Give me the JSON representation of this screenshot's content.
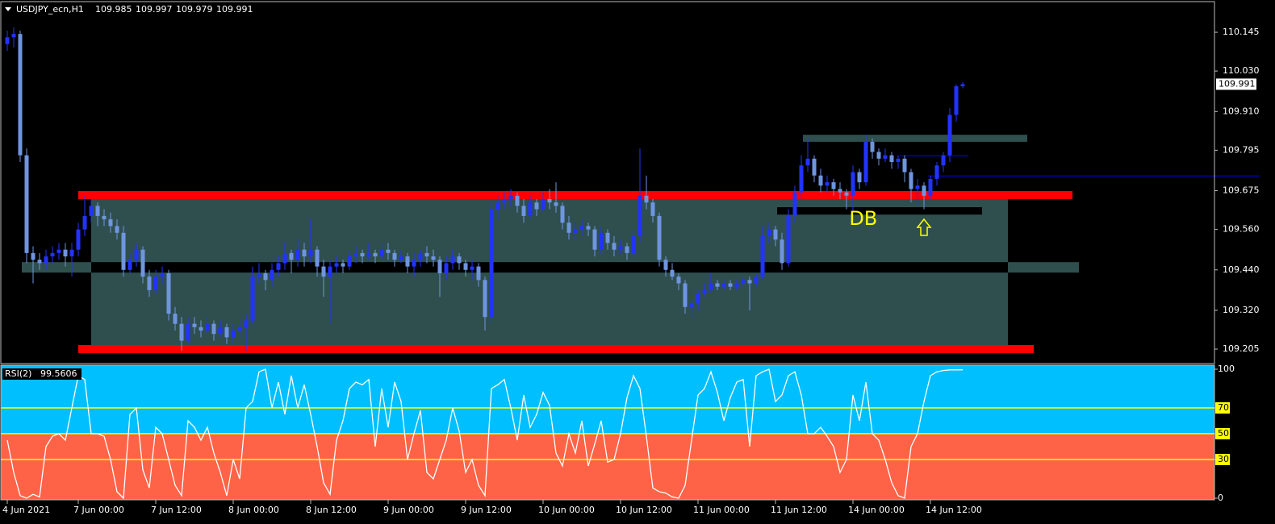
{
  "chart_data": {
    "type": "candlestick",
    "symbol": "USDJPY_ecn,H1",
    "colors": {
      "up": "#2233ff",
      "down": "#6f95e0",
      "label_bg": "#ffffff",
      "annotation": "#ffff00"
    },
    "ylim": [
      109.162,
      110.236
    ],
    "yticks": [
      110.145,
      {
        "value": 110.03,
        "label": "110.030"
      },
      {
        "value": 109.91,
        "label": "109.910"
      },
      109.795,
      109.675,
      {
        "value": 109.56,
        "label": "109.560"
      },
      {
        "value": 109.44,
        "label": "109.440"
      },
      {
        "value": 109.32,
        "label": "109.320"
      },
      109.205
    ],
    "xticks": [
      {
        "value": 0,
        "label": "4 Jun 2021"
      },
      {
        "value": 11,
        "label": "7 Jun 00:00"
      },
      {
        "value": 23,
        "label": "7 Jun 12:00"
      },
      {
        "value": 35,
        "label": "8 Jun 00:00"
      },
      {
        "value": 47,
        "label": "8 Jun 12:00"
      },
      {
        "value": 59,
        "label": "9 Jun 00:00"
      },
      {
        "value": 71,
        "label": "9 Jun 12:00"
      },
      {
        "value": 83,
        "label": "10 Jun 00:00"
      },
      {
        "value": 95,
        "label": "10 Jun 12:00"
      },
      {
        "value": 107,
        "label": "11 Jun 00:00"
      },
      {
        "value": 119,
        "label": "11 Jun 12:00"
      },
      {
        "value": 131,
        "label": "14 Jun 00:00"
      },
      {
        "value": 143,
        "label": "14 Jun 12:00"
      }
    ],
    "zones": [
      {
        "from": 2.25,
        "to": 166,
        "lo": 109.432,
        "hi": 109.463,
        "color": "#2f4f4f"
      },
      {
        "from": 13,
        "to": 155,
        "lo": 109.205,
        "hi": 109.662,
        "color": "#2f4f4f"
      },
      {
        "from": 13,
        "to": 155,
        "lo": 109.432,
        "hi": 109.463,
        "color": "#000000"
      },
      {
        "from": 123.25,
        "to": 158,
        "lo": 109.82,
        "hi": 109.841,
        "color": "#2f4f4f"
      },
      {
        "from": 119.25,
        "to": 151,
        "lo": 109.604,
        "hi": 109.626,
        "color": "#000000"
      },
      {
        "from": 11,
        "to": 165,
        "lo": 109.65,
        "hi": 109.674,
        "color": "#ff0000"
      },
      {
        "from": 11,
        "to": 159,
        "lo": 109.193,
        "hi": 109.217,
        "color": "#ff0000"
      },
      {
        "from": 142.6,
        "to": 194,
        "lo": 109.718,
        "hi": 109.72,
        "color": "#0000ff"
      },
      {
        "from": 138.25,
        "to": 148.9,
        "lo": 109.778,
        "hi": 109.78,
        "color": "#0000ff"
      }
    ],
    "annotation": {
      "text": "DB",
      "x": 132.6,
      "y": 109.59
    },
    "ohlc": [
      [
        110.11,
        110.15,
        110.09,
        110.13
      ],
      [
        110.13,
        110.16,
        110.1,
        110.14
      ],
      [
        110.14,
        110.15,
        109.76,
        109.78
      ],
      [
        109.78,
        109.8,
        109.46,
        109.49
      ],
      [
        109.49,
        109.51,
        109.4,
        109.47
      ],
      [
        109.47,
        109.49,
        109.44,
        109.46
      ],
      [
        109.46,
        109.5,
        109.44,
        109.48
      ],
      [
        109.48,
        109.51,
        109.46,
        109.49
      ],
      [
        109.49,
        109.52,
        109.47,
        109.5
      ],
      [
        109.5,
        109.52,
        109.45,
        109.48
      ],
      [
        109.48,
        109.52,
        109.42,
        109.5
      ],
      [
        109.5,
        109.58,
        109.48,
        109.56
      ],
      [
        109.56,
        109.66,
        109.54,
        109.6
      ],
      [
        109.6,
        109.65,
        109.58,
        109.63
      ],
      [
        109.63,
        109.64,
        109.57,
        109.6
      ],
      [
        109.6,
        109.62,
        109.57,
        109.59
      ],
      [
        109.59,
        109.61,
        109.55,
        109.57
      ],
      [
        109.57,
        109.59,
        109.53,
        109.55
      ],
      [
        109.55,
        109.57,
        109.42,
        109.44
      ],
      [
        109.44,
        109.49,
        109.43,
        109.47
      ],
      [
        109.47,
        109.52,
        109.45,
        109.5
      ],
      [
        109.5,
        109.51,
        109.4,
        109.42
      ],
      [
        109.42,
        109.44,
        109.36,
        109.38
      ],
      [
        109.38,
        109.44,
        109.37,
        109.42
      ],
      [
        109.42,
        109.45,
        109.4,
        109.43
      ],
      [
        109.43,
        109.44,
        109.29,
        109.31
      ],
      [
        109.31,
        109.33,
        109.26,
        109.28
      ],
      [
        109.28,
        109.3,
        109.2,
        109.23
      ],
      [
        109.23,
        109.3,
        109.22,
        109.28
      ],
      [
        109.28,
        109.3,
        109.25,
        109.27
      ],
      [
        109.27,
        109.29,
        109.24,
        109.26
      ],
      [
        109.26,
        109.3,
        109.25,
        109.28
      ],
      [
        109.28,
        109.29,
        109.23,
        109.25
      ],
      [
        109.25,
        109.29,
        109.24,
        109.27
      ],
      [
        109.27,
        109.28,
        109.22,
        109.24
      ],
      [
        109.24,
        109.28,
        109.22,
        109.26
      ],
      [
        109.26,
        109.29,
        109.24,
        109.27
      ],
      [
        109.27,
        109.31,
        109.2,
        109.29
      ],
      [
        109.29,
        109.45,
        109.28,
        109.42
      ],
      [
        109.42,
        109.46,
        109.4,
        109.43
      ],
      [
        109.43,
        109.44,
        109.38,
        109.41
      ],
      [
        109.41,
        109.46,
        109.39,
        109.44
      ],
      [
        109.44,
        109.48,
        109.42,
        109.46
      ],
      [
        109.46,
        109.52,
        109.44,
        109.49
      ],
      [
        109.49,
        109.5,
        109.43,
        109.47
      ],
      [
        109.47,
        109.53,
        109.45,
        109.5
      ],
      [
        109.5,
        109.52,
        109.45,
        109.48
      ],
      [
        109.48,
        109.59,
        109.46,
        109.5
      ],
      [
        109.5,
        109.51,
        109.42,
        109.45
      ],
      [
        109.45,
        109.47,
        109.36,
        109.42
      ],
      [
        109.42,
        109.47,
        109.28,
        109.45
      ],
      [
        109.45,
        109.48,
        109.43,
        109.46
      ],
      [
        109.46,
        109.47,
        109.43,
        109.45
      ],
      [
        109.45,
        109.5,
        109.44,
        109.48
      ],
      [
        109.48,
        109.51,
        109.46,
        109.49
      ],
      [
        109.49,
        109.5,
        109.46,
        109.48
      ],
      [
        109.48,
        109.52,
        109.47,
        109.49
      ],
      [
        109.49,
        109.5,
        109.46,
        109.48
      ],
      [
        109.48,
        109.52,
        109.47,
        109.5
      ],
      [
        109.5,
        109.52,
        109.47,
        109.49
      ],
      [
        109.49,
        109.5,
        109.45,
        109.47
      ],
      [
        109.47,
        109.5,
        109.46,
        109.48
      ],
      [
        109.48,
        109.49,
        109.43,
        109.45
      ],
      [
        109.45,
        109.49,
        109.42,
        109.47
      ],
      [
        109.47,
        109.5,
        109.45,
        109.49
      ],
      [
        109.49,
        109.51,
        109.46,
        109.48
      ],
      [
        109.48,
        109.5,
        109.45,
        109.47
      ],
      [
        109.47,
        109.48,
        109.36,
        109.43
      ],
      [
        109.43,
        109.48,
        109.41,
        109.46
      ],
      [
        109.46,
        109.5,
        109.44,
        109.48
      ],
      [
        109.48,
        109.49,
        109.44,
        109.46
      ],
      [
        109.46,
        109.47,
        109.42,
        109.44
      ],
      [
        109.44,
        109.47,
        109.41,
        109.45
      ],
      [
        109.45,
        109.46,
        109.39,
        109.41
      ],
      [
        109.41,
        109.42,
        109.26,
        109.3
      ],
      [
        109.3,
        109.64,
        109.28,
        109.62
      ],
      [
        109.62,
        109.66,
        109.59,
        109.64
      ],
      [
        109.64,
        109.67,
        109.62,
        109.65
      ],
      [
        109.65,
        109.68,
        109.63,
        109.66
      ],
      [
        109.66,
        109.67,
        109.61,
        109.63
      ],
      [
        109.63,
        109.65,
        109.58,
        109.6
      ],
      [
        109.6,
        109.66,
        109.59,
        109.64
      ],
      [
        109.64,
        109.65,
        109.6,
        109.62
      ],
      [
        109.62,
        109.67,
        109.61,
        109.65
      ],
      [
        109.65,
        109.68,
        109.62,
        109.64
      ],
      [
        109.64,
        109.7,
        109.61,
        109.63
      ],
      [
        109.63,
        109.64,
        109.56,
        109.58
      ],
      [
        109.58,
        109.6,
        109.53,
        109.55
      ],
      [
        109.55,
        109.58,
        109.53,
        109.56
      ],
      [
        109.56,
        109.59,
        109.54,
        109.57
      ],
      [
        109.57,
        109.58,
        109.54,
        109.56
      ],
      [
        109.56,
        109.57,
        109.48,
        109.5
      ],
      [
        109.5,
        109.57,
        109.49,
        109.55
      ],
      [
        109.55,
        109.56,
        109.5,
        109.52
      ],
      [
        109.52,
        109.54,
        109.48,
        109.5
      ],
      [
        109.5,
        109.53,
        109.49,
        109.51
      ],
      [
        109.51,
        109.52,
        109.47,
        109.49
      ],
      [
        109.49,
        109.56,
        109.48,
        109.54
      ],
      [
        109.54,
        109.8,
        109.52,
        109.66
      ],
      [
        109.66,
        109.72,
        109.62,
        109.64
      ],
      [
        109.64,
        109.65,
        109.58,
        109.6
      ],
      [
        109.6,
        109.61,
        109.45,
        109.47
      ],
      [
        109.47,
        109.48,
        109.42,
        109.44
      ],
      [
        109.44,
        109.46,
        109.41,
        109.42
      ],
      [
        109.42,
        109.43,
        109.38,
        109.4
      ],
      [
        109.4,
        109.41,
        109.31,
        109.33
      ],
      [
        109.33,
        109.35,
        109.3,
        109.34
      ],
      [
        109.34,
        109.38,
        109.32,
        109.37
      ],
      [
        109.37,
        109.4,
        109.36,
        109.38
      ],
      [
        109.38,
        109.43,
        109.37,
        109.4
      ],
      [
        109.4,
        109.41,
        109.38,
        109.39
      ],
      [
        109.39,
        109.41,
        109.38,
        109.4
      ],
      [
        109.4,
        109.41,
        109.38,
        109.39
      ],
      [
        109.39,
        109.41,
        109.38,
        109.4
      ],
      [
        109.4,
        109.42,
        109.39,
        109.41
      ],
      [
        109.41,
        109.42,
        109.32,
        109.4
      ],
      [
        109.4,
        109.43,
        109.39,
        109.42
      ],
      [
        109.42,
        109.57,
        109.41,
        109.54
      ],
      [
        109.54,
        109.58,
        109.52,
        109.56
      ],
      [
        109.56,
        109.57,
        109.51,
        109.53
      ],
      [
        109.53,
        109.55,
        109.44,
        109.46
      ],
      [
        109.46,
        109.62,
        109.45,
        109.6
      ],
      [
        109.6,
        109.69,
        109.58,
        109.67
      ],
      [
        109.67,
        109.78,
        109.65,
        109.75
      ],
      [
        109.75,
        109.83,
        109.73,
        109.77
      ],
      [
        109.77,
        109.78,
        109.7,
        109.72
      ],
      [
        109.72,
        109.74,
        109.67,
        109.69
      ],
      [
        109.69,
        109.72,
        109.67,
        109.7
      ],
      [
        109.7,
        109.71,
        109.66,
        109.68
      ],
      [
        109.68,
        109.7,
        109.65,
        109.67
      ],
      [
        109.67,
        109.68,
        109.62,
        109.66
      ],
      [
        109.66,
        109.75,
        109.61,
        109.73
      ],
      [
        109.73,
        109.74,
        109.68,
        109.7
      ],
      [
        109.7,
        109.84,
        109.69,
        109.82
      ],
      [
        109.82,
        109.83,
        109.77,
        109.79
      ],
      [
        109.79,
        109.8,
        109.75,
        109.77
      ],
      [
        109.77,
        109.8,
        109.76,
        109.78
      ],
      [
        109.78,
        109.79,
        109.74,
        109.76
      ],
      [
        109.76,
        109.78,
        109.74,
        109.77
      ],
      [
        109.77,
        109.78,
        109.7,
        109.73
      ],
      [
        109.73,
        109.74,
        109.64,
        109.68
      ],
      [
        109.68,
        109.71,
        109.63,
        109.69
      ],
      [
        109.69,
        109.7,
        109.62,
        109.66
      ],
      [
        109.66,
        109.72,
        109.65,
        109.71
      ],
      [
        109.71,
        109.76,
        109.69,
        109.75
      ],
      [
        109.75,
        109.79,
        109.73,
        109.78
      ],
      [
        109.78,
        109.92,
        109.76,
        109.9
      ],
      [
        109.9,
        109.99,
        109.88,
        109.985
      ],
      [
        109.985,
        109.997,
        109.979,
        109.991
      ]
    ],
    "indicator": {
      "label": "RSI(2)",
      "color": "#ffffff",
      "upper_color": "#00bfff",
      "lower_color": "#ff6347",
      "level_color": "#ffff00",
      "ylim": [
        0,
        100
      ],
      "yticks": [
        100,
        70,
        50,
        30,
        0
      ],
      "levels": [
        70,
        50,
        30
      ],
      "values": [
        45,
        20,
        2,
        0,
        3,
        1,
        40,
        48,
        50,
        45,
        70,
        95,
        92,
        50,
        50,
        48,
        30,
        5,
        0,
        65,
        70,
        22,
        8,
        55,
        50,
        30,
        10,
        2,
        60,
        55,
        45,
        55,
        35,
        20,
        2,
        30,
        15,
        70,
        75,
        98,
        100,
        70,
        90,
        65,
        95,
        70,
        88,
        65,
        40,
        12,
        3,
        45,
        60,
        85,
        90,
        88,
        92,
        40,
        85,
        55,
        90,
        75,
        30,
        50,
        68,
        20,
        15,
        30,
        45,
        70,
        52,
        20,
        30,
        10,
        2,
        85,
        88,
        92,
        70,
        45,
        80,
        55,
        65,
        82,
        72,
        35,
        25,
        50,
        35,
        60,
        25,
        42,
        60,
        28,
        30,
        50,
        78,
        95,
        85,
        48,
        8,
        5,
        4,
        1,
        0,
        10,
        45,
        80,
        85,
        98,
        82,
        60,
        78,
        90,
        92,
        40,
        95,
        98,
        100,
        75,
        80,
        95,
        98,
        80,
        50,
        50,
        55,
        48,
        40,
        20,
        30,
        80,
        60,
        90,
        50,
        45,
        30,
        12,
        2,
        0,
        40,
        50,
        75,
        95,
        98,
        99,
        99.5,
        99.5,
        99.5606
      ]
    }
  }
}
